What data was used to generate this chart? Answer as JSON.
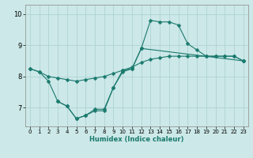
{
  "xlabel": "Humidex (Indice chaleur)",
  "bg_color": "#cce8e8",
  "line_color": "#1a7a6e",
  "grid_color": "#aacfcf",
  "xlim": [
    -0.5,
    23.5
  ],
  "ylim": [
    6.4,
    10.3
  ],
  "yticks": [
    7,
    8,
    9,
    10
  ],
  "xticks": [
    0,
    1,
    2,
    3,
    4,
    5,
    6,
    7,
    8,
    9,
    10,
    11,
    12,
    13,
    14,
    15,
    16,
    17,
    18,
    19,
    20,
    21,
    22,
    23
  ],
  "curve_upper": {
    "x": [
      0,
      1,
      2,
      3,
      4,
      5,
      6,
      7,
      8,
      9,
      10,
      11,
      12,
      13,
      14,
      15,
      16,
      17,
      18,
      19,
      20,
      21,
      22,
      23
    ],
    "y": [
      8.25,
      8.15,
      8.0,
      7.95,
      7.9,
      7.85,
      7.9,
      7.95,
      8.0,
      8.1,
      8.2,
      8.3,
      8.45,
      8.55,
      8.6,
      8.65,
      8.65,
      8.65,
      8.65,
      8.65,
      8.65,
      8.65,
      8.65,
      8.5
    ]
  },
  "curve_spike": {
    "x": [
      0,
      1,
      2,
      3,
      4,
      5,
      6,
      7,
      8,
      9,
      10,
      11,
      12,
      13,
      14,
      15,
      16,
      17,
      18,
      19,
      20,
      21,
      22,
      23
    ],
    "y": [
      8.25,
      8.15,
      7.85,
      7.2,
      7.05,
      6.65,
      6.75,
      6.95,
      6.95,
      7.65,
      8.2,
      8.25,
      8.9,
      9.8,
      9.75,
      9.75,
      9.65,
      9.05,
      8.85,
      8.65,
      8.65,
      8.65,
      8.65,
      8.5
    ]
  },
  "curve_low": {
    "x": [
      3,
      4,
      5,
      6,
      7,
      8,
      9,
      10,
      11,
      12,
      23
    ],
    "y": [
      7.2,
      7.05,
      6.65,
      6.75,
      6.9,
      6.9,
      7.65,
      8.15,
      8.25,
      8.9,
      8.5
    ]
  }
}
